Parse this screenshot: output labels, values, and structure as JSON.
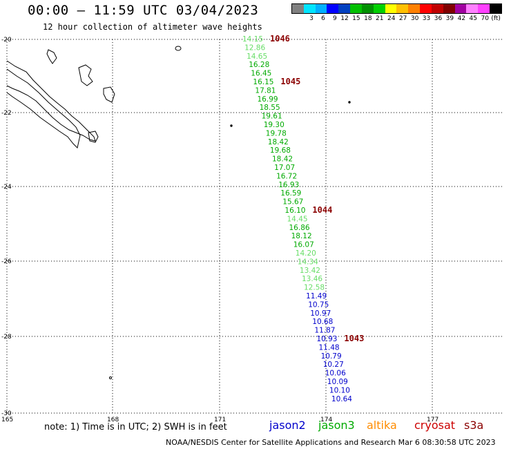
{
  "header": {
    "title": "00:00 – 11:59 UTC 03/04/2023",
    "subtitle": "12 hour collection of altimeter wave heights"
  },
  "legend": {
    "unit": "(ft)",
    "swatches": [
      "#808080",
      "#00e5ff",
      "#00b0ff",
      "#0000ff",
      "#0040c0",
      "#00c000",
      "#009000",
      "#00d000",
      "#ffff00",
      "#ffc000",
      "#ff8000",
      "#ff0000",
      "#c00000",
      "#800000",
      "#a000a0",
      "#ff80ff",
      "#ff40ff",
      "#000000"
    ],
    "labels": [
      "",
      "3",
      "6",
      "9",
      "12",
      "15",
      "18",
      "21",
      "24",
      "27",
      "30",
      "33",
      "36",
      "39",
      "42",
      "45",
      "70",
      "(ft)"
    ]
  },
  "axes": {
    "lat_labels": [
      "-20",
      "-22",
      "-24",
      "-26",
      "-28",
      "-30"
    ],
    "lon_labels": [
      "165",
      "168",
      "171",
      "174",
      "177"
    ]
  },
  "colors": {
    "jason2": "#0000cc",
    "jason3": "#00aa00",
    "altika": "#ff8c00",
    "cryosat": "#cc0000",
    "s3a": "#8b0000",
    "light_green": "#66dd66",
    "green": "#00aa00",
    "blue": "#0000cc",
    "pressure": "#8b0000"
  },
  "track": [
    {
      "v": "14.15",
      "c": "light_green"
    },
    {
      "v": "12.86",
      "c": "light_green"
    },
    {
      "v": "14.65",
      "c": "light_green"
    },
    {
      "v": "16.28",
      "c": "green"
    },
    {
      "v": "16.45",
      "c": "green"
    },
    {
      "v": "16.15",
      "c": "green"
    },
    {
      "v": "17.81",
      "c": "green"
    },
    {
      "v": "16.99",
      "c": "green"
    },
    {
      "v": "18.55",
      "c": "green"
    },
    {
      "v": "19.61",
      "c": "green"
    },
    {
      "v": "19.30",
      "c": "green"
    },
    {
      "v": "19.78",
      "c": "green"
    },
    {
      "v": "18.42",
      "c": "green"
    },
    {
      "v": "19.68",
      "c": "green"
    },
    {
      "v": "18.42",
      "c": "green"
    },
    {
      "v": "17.07",
      "c": "green"
    },
    {
      "v": "16.72",
      "c": "green"
    },
    {
      "v": "16.93",
      "c": "green"
    },
    {
      "v": "16.59",
      "c": "green"
    },
    {
      "v": "15.67",
      "c": "green"
    },
    {
      "v": "16.10",
      "c": "green"
    },
    {
      "v": "14.45",
      "c": "light_green"
    },
    {
      "v": "16.86",
      "c": "green"
    },
    {
      "v": "18.12",
      "c": "green"
    },
    {
      "v": "16.07",
      "c": "green"
    },
    {
      "v": "14.20",
      "c": "light_green"
    },
    {
      "v": "14.34",
      "c": "light_green"
    },
    {
      "v": "13.42",
      "c": "light_green"
    },
    {
      "v": "13.46",
      "c": "light_green"
    },
    {
      "v": "12.58",
      "c": "light_green"
    },
    {
      "v": "11.49",
      "c": "blue"
    },
    {
      "v": "10.75",
      "c": "blue"
    },
    {
      "v": "10.97",
      "c": "blue"
    },
    {
      "v": "10.68",
      "c": "blue"
    },
    {
      "v": "11.87",
      "c": "blue"
    },
    {
      "v": "10.93",
      "c": "blue"
    },
    {
      "v": "11.48",
      "c": "blue"
    },
    {
      "v": "10.79",
      "c": "blue"
    },
    {
      "v": "10.27",
      "c": "blue"
    },
    {
      "v": "10.06",
      "c": "blue"
    },
    {
      "v": "10.09",
      "c": "blue"
    },
    {
      "v": "10.10",
      "c": "blue"
    },
    {
      "v": "10.64",
      "c": "blue"
    }
  ],
  "pressures": [
    {
      "v": "1046",
      "after": 0
    },
    {
      "v": "1045",
      "after": 5
    },
    {
      "v": "1044",
      "after": 20
    },
    {
      "v": "1043",
      "after": 35
    }
  ],
  "footer": {
    "note": "note: 1) Time is in UTC; 2) SWH is in feet",
    "satellites": [
      {
        "name": "jason2",
        "color": "#0000cc"
      },
      {
        "name": "jason3",
        "color": "#00aa00"
      },
      {
        "name": "altika",
        "color": "#ff8c00"
      },
      {
        "name": "cryosat",
        "color": "#cc0000"
      },
      {
        "name": "s3a",
        "color": "#8b0000"
      }
    ],
    "credit": "NOAA/NESDIS Center for Satellite Applications and Research    Mar  6 08:30:58 UTC 2023"
  }
}
